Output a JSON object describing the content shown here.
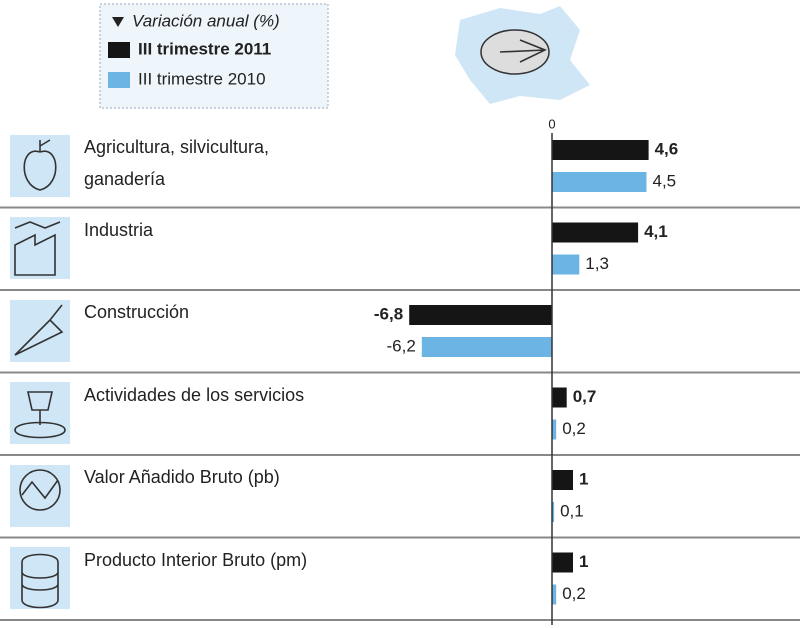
{
  "chart_data": {
    "type": "hbar",
    "legend_title": "Variación anual (%)",
    "categories": [
      "Agricultura, silvicultura, ganadería",
      "Industria",
      "Construcción",
      "Actividades de los servicios",
      "Valor Añadido Bruto (pb)",
      "Producto Interior Bruto (pm)"
    ],
    "series": [
      {
        "name": "III trimestre 2011",
        "color": "#151515",
        "values": [
          4.6,
          4.1,
          -6.8,
          0.7,
          1,
          1
        ],
        "value_labels": [
          "4,6",
          "4,1",
          "-6,8",
          "0,7",
          "1",
          "1"
        ]
      },
      {
        "name": "III trimestre 2010",
        "color": "#6cb4e4",
        "values": [
          4.5,
          1.3,
          -6.2,
          0.2,
          0.1,
          0.2
        ],
        "value_labels": [
          "4,5",
          "1,3",
          "-6,2",
          "0,2",
          "0,1",
          "0,2"
        ]
      }
    ],
    "xlim": [
      -8,
      8
    ],
    "xticks": [
      0
    ]
  }
}
